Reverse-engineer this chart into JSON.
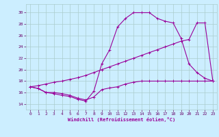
{
  "xlabel": "Windchill (Refroidissement éolien,°C)",
  "bg_color": "#cceeff",
  "line_color": "#990099",
  "grid_color": "#aacccc",
  "x_ticks": [
    0,
    1,
    2,
    3,
    4,
    5,
    6,
    7,
    8,
    9,
    10,
    11,
    12,
    13,
    14,
    15,
    16,
    17,
    18,
    19,
    20,
    21,
    22,
    23
  ],
  "y_ticks": [
    14,
    16,
    18,
    20,
    22,
    24,
    26,
    28,
    30
  ],
  "ylim": [
    13.0,
    31.5
  ],
  "xlim": [
    -0.5,
    23.5
  ],
  "line1_x": [
    0,
    1,
    2,
    3,
    4,
    5,
    6,
    7,
    8,
    9,
    10,
    11,
    12,
    13,
    14,
    15,
    16,
    17,
    18,
    19,
    20,
    21,
    22,
    23
  ],
  "line1_y": [
    17.0,
    16.7,
    16.0,
    16.0,
    15.8,
    15.5,
    15.0,
    14.7,
    15.2,
    16.5,
    16.8,
    17.0,
    17.5,
    17.8,
    18.0,
    18.0,
    18.0,
    18.0,
    18.0,
    18.0,
    18.0,
    18.0,
    18.0,
    18.0
  ],
  "line2_x": [
    0,
    1,
    2,
    3,
    4,
    5,
    6,
    7,
    8,
    9,
    10,
    11,
    12,
    13,
    14,
    15,
    16,
    17,
    18,
    19,
    20,
    21,
    22,
    23
  ],
  "line2_y": [
    17.0,
    17.2,
    17.5,
    17.8,
    18.0,
    18.3,
    18.6,
    19.0,
    19.5,
    20.0,
    20.5,
    21.0,
    21.5,
    22.0,
    22.5,
    23.0,
    23.5,
    24.0,
    24.5,
    25.0,
    25.3,
    28.2,
    28.2,
    18.0
  ],
  "line3_x": [
    0,
    1,
    2,
    3,
    4,
    5,
    6,
    7,
    8,
    9,
    10,
    11,
    12,
    13,
    14,
    15,
    16,
    17,
    18,
    19,
    20,
    21,
    22,
    23
  ],
  "line3_y": [
    17.0,
    16.7,
    16.0,
    15.8,
    15.5,
    15.3,
    14.8,
    14.5,
    16.2,
    21.0,
    23.5,
    27.5,
    29.0,
    30.0,
    30.0,
    30.0,
    29.0,
    28.5,
    28.2,
    25.5,
    21.0,
    19.5,
    18.5,
    18.0
  ]
}
